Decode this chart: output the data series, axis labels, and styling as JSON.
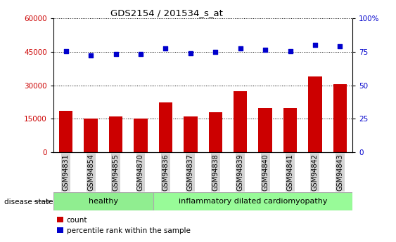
{
  "title": "GDS2154 / 201534_s_at",
  "samples": [
    "GSM94831",
    "GSM94854",
    "GSM94855",
    "GSM94870",
    "GSM94836",
    "GSM94837",
    "GSM94838",
    "GSM94839",
    "GSM94840",
    "GSM94841",
    "GSM94842",
    "GSM94843"
  ],
  "counts": [
    18500,
    15000,
    16000,
    15000,
    22500,
    16000,
    18000,
    27500,
    20000,
    20000,
    34000,
    30500
  ],
  "percentile_right": [
    75.5,
    72.5,
    73.5,
    73.5,
    77.5,
    74.0,
    75.0,
    77.5,
    76.5,
    75.5,
    80.0,
    79.0
  ],
  "n_healthy": 4,
  "n_disease": 8,
  "bar_color": "#cc0000",
  "dot_color": "#0000cc",
  "left_ylim": [
    0,
    60000
  ],
  "left_yticks": [
    0,
    15000,
    30000,
    45000,
    60000
  ],
  "right_ylim": [
    0,
    100
  ],
  "right_yticks": [
    0,
    25,
    50,
    75,
    100
  ],
  "healthy_color": "#90ee90",
  "disease_color": "#98fb98",
  "label_bg_color": "#d3d3d3",
  "healthy_label": "healthy",
  "disease_label": "inflammatory dilated cardiomyopathy",
  "disease_state_label": "disease state",
  "legend_count": "count",
  "legend_pct": "percentile rank within the sample",
  "grid_color": "black",
  "grid_ls": ":"
}
